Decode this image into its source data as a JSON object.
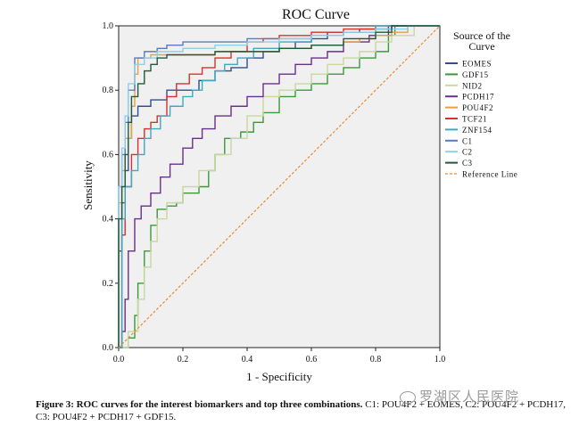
{
  "chart_data": {
    "type": "line",
    "title": "ROC Curve",
    "xlabel": "1 - Specificity",
    "ylabel": "Sensitivity",
    "xlim": [
      0,
      1
    ],
    "ylim": [
      0,
      1
    ],
    "xticks": [
      "0.0",
      "0.2",
      "0.4",
      "0.6",
      "0.8",
      "1.0"
    ],
    "yticks": [
      "0.0",
      "0.2",
      "0.4",
      "0.6",
      "0.8",
      "1.0"
    ],
    "legend_title": "Source of the Curve",
    "legend_position": "right",
    "series": [
      {
        "name": "EOMES",
        "color": "#2f4f8f",
        "points": [
          [
            0,
            0
          ],
          [
            0,
            0.3
          ],
          [
            0.01,
            0.45
          ],
          [
            0.02,
            0.55
          ],
          [
            0.03,
            0.65
          ],
          [
            0.04,
            0.72
          ],
          [
            0.06,
            0.75
          ],
          [
            0.1,
            0.77
          ],
          [
            0.15,
            0.8
          ],
          [
            0.2,
            0.8
          ],
          [
            0.25,
            0.83
          ],
          [
            0.3,
            0.86
          ],
          [
            0.35,
            0.87
          ],
          [
            0.4,
            0.9
          ],
          [
            0.45,
            0.92
          ],
          [
            0.5,
            0.93
          ],
          [
            0.55,
            0.95
          ],
          [
            0.6,
            0.96
          ],
          [
            0.65,
            0.98
          ],
          [
            0.75,
            0.99
          ],
          [
            0.85,
            1
          ],
          [
            1,
            1
          ]
        ]
      },
      {
        "name": "GDF15",
        "color": "#3a9a3a",
        "points": [
          [
            0,
            0
          ],
          [
            0.03,
            0.03
          ],
          [
            0.05,
            0.1
          ],
          [
            0.06,
            0.2
          ],
          [
            0.08,
            0.3
          ],
          [
            0.1,
            0.38
          ],
          [
            0.12,
            0.43
          ],
          [
            0.15,
            0.44
          ],
          [
            0.18,
            0.45
          ],
          [
            0.2,
            0.48
          ],
          [
            0.25,
            0.5
          ],
          [
            0.28,
            0.55
          ],
          [
            0.3,
            0.6
          ],
          [
            0.33,
            0.65
          ],
          [
            0.38,
            0.67
          ],
          [
            0.42,
            0.7
          ],
          [
            0.45,
            0.73
          ],
          [
            0.5,
            0.78
          ],
          [
            0.55,
            0.8
          ],
          [
            0.6,
            0.82
          ],
          [
            0.65,
            0.85
          ],
          [
            0.7,
            0.87
          ],
          [
            0.75,
            0.9
          ],
          [
            0.8,
            0.92
          ],
          [
            0.84,
            0.97
          ],
          [
            0.86,
            1
          ],
          [
            1,
            1
          ]
        ]
      },
      {
        "name": "NID2",
        "color": "#c8d8a0",
        "points": [
          [
            0,
            0
          ],
          [
            0.03,
            0.05
          ],
          [
            0.06,
            0.15
          ],
          [
            0.08,
            0.25
          ],
          [
            0.1,
            0.33
          ],
          [
            0.12,
            0.4
          ],
          [
            0.15,
            0.45
          ],
          [
            0.2,
            0.5
          ],
          [
            0.25,
            0.55
          ],
          [
            0.3,
            0.6
          ],
          [
            0.35,
            0.65
          ],
          [
            0.4,
            0.72
          ],
          [
            0.45,
            0.78
          ],
          [
            0.5,
            0.8
          ],
          [
            0.55,
            0.82
          ],
          [
            0.6,
            0.85
          ],
          [
            0.65,
            0.88
          ],
          [
            0.7,
            0.9
          ],
          [
            0.75,
            0.92
          ],
          [
            0.8,
            0.95
          ],
          [
            0.85,
            0.97
          ],
          [
            0.92,
            1
          ],
          [
            1,
            1
          ]
        ]
      },
      {
        "name": "PCDH17",
        "color": "#6a2f8a",
        "points": [
          [
            0,
            0
          ],
          [
            0.01,
            0.05
          ],
          [
            0.02,
            0.15
          ],
          [
            0.03,
            0.3
          ],
          [
            0.05,
            0.4
          ],
          [
            0.07,
            0.44
          ],
          [
            0.1,
            0.48
          ],
          [
            0.13,
            0.53
          ],
          [
            0.16,
            0.57
          ],
          [
            0.2,
            0.62
          ],
          [
            0.23,
            0.65
          ],
          [
            0.26,
            0.68
          ],
          [
            0.3,
            0.72
          ],
          [
            0.35,
            0.75
          ],
          [
            0.4,
            0.78
          ],
          [
            0.45,
            0.82
          ],
          [
            0.5,
            0.85
          ],
          [
            0.55,
            0.88
          ],
          [
            0.6,
            0.9
          ],
          [
            0.65,
            0.92
          ],
          [
            0.7,
            0.95
          ],
          [
            0.78,
            0.97
          ],
          [
            0.84,
            1
          ],
          [
            1,
            1
          ]
        ]
      },
      {
        "name": "POU4F2",
        "color": "#e8a040",
        "points": [
          [
            0,
            0
          ],
          [
            0,
            0.45
          ],
          [
            0.01,
            0.55
          ],
          [
            0.02,
            0.65
          ],
          [
            0.04,
            0.75
          ],
          [
            0.05,
            0.85
          ],
          [
            0.06,
            0.9
          ],
          [
            0.1,
            0.91
          ],
          [
            0.2,
            0.91
          ],
          [
            0.3,
            0.92
          ],
          [
            0.4,
            0.92
          ],
          [
            0.5,
            0.93
          ],
          [
            0.6,
            0.94
          ],
          [
            0.7,
            0.95
          ],
          [
            0.75,
            0.96
          ],
          [
            0.8,
            0.97
          ],
          [
            0.85,
            0.98
          ],
          [
            0.9,
            1
          ],
          [
            1,
            1
          ]
        ]
      },
      {
        "name": "TCF21",
        "color": "#d83030",
        "points": [
          [
            0,
            0
          ],
          [
            0.01,
            0.35
          ],
          [
            0.02,
            0.5
          ],
          [
            0.04,
            0.6
          ],
          [
            0.06,
            0.65
          ],
          [
            0.08,
            0.68
          ],
          [
            0.1,
            0.7
          ],
          [
            0.12,
            0.72
          ],
          [
            0.15,
            0.78
          ],
          [
            0.18,
            0.82
          ],
          [
            0.22,
            0.85
          ],
          [
            0.26,
            0.87
          ],
          [
            0.3,
            0.9
          ],
          [
            0.35,
            0.92
          ],
          [
            0.4,
            0.95
          ],
          [
            0.45,
            0.96
          ],
          [
            0.5,
            0.97
          ],
          [
            0.6,
            0.98
          ],
          [
            0.7,
            0.99
          ],
          [
            0.8,
            1
          ],
          [
            1,
            1
          ]
        ]
      },
      {
        "name": "ZNF154",
        "color": "#40a8c0",
        "points": [
          [
            0,
            0
          ],
          [
            0.01,
            0.4
          ],
          [
            0.02,
            0.5
          ],
          [
            0.04,
            0.55
          ],
          [
            0.06,
            0.6
          ],
          [
            0.08,
            0.65
          ],
          [
            0.1,
            0.68
          ],
          [
            0.13,
            0.72
          ],
          [
            0.16,
            0.75
          ],
          [
            0.2,
            0.78
          ],
          [
            0.23,
            0.8
          ],
          [
            0.26,
            0.83
          ],
          [
            0.3,
            0.86
          ],
          [
            0.33,
            0.88
          ],
          [
            0.37,
            0.9
          ],
          [
            0.42,
            0.93
          ],
          [
            0.5,
            0.95
          ],
          [
            0.6,
            0.97
          ],
          [
            0.7,
            0.98
          ],
          [
            0.8,
            1
          ],
          [
            1,
            1
          ]
        ]
      },
      {
        "name": "C1",
        "color": "#5a7abf",
        "points": [
          [
            0,
            0
          ],
          [
            0,
            0.5
          ],
          [
            0.01,
            0.6
          ],
          [
            0.02,
            0.7
          ],
          [
            0.03,
            0.8
          ],
          [
            0.05,
            0.9
          ],
          [
            0.08,
            0.92
          ],
          [
            0.12,
            0.93
          ],
          [
            0.15,
            0.94
          ],
          [
            0.2,
            0.95
          ],
          [
            0.3,
            0.95
          ],
          [
            0.4,
            0.96
          ],
          [
            0.5,
            0.96
          ],
          [
            0.6,
            0.97
          ],
          [
            0.7,
            0.98
          ],
          [
            0.8,
            0.99
          ],
          [
            0.85,
            1
          ],
          [
            1,
            1
          ]
        ]
      },
      {
        "name": "C2",
        "color": "#8ed0e8",
        "points": [
          [
            0,
            0
          ],
          [
            0,
            0.5
          ],
          [
            0.01,
            0.62
          ],
          [
            0.02,
            0.72
          ],
          [
            0.03,
            0.82
          ],
          [
            0.05,
            0.88
          ],
          [
            0.08,
            0.9
          ],
          [
            0.12,
            0.92
          ],
          [
            0.2,
            0.93
          ],
          [
            0.3,
            0.94
          ],
          [
            0.4,
            0.95
          ],
          [
            0.5,
            0.96
          ],
          [
            0.6,
            0.97
          ],
          [
            0.7,
            0.98
          ],
          [
            0.8,
            0.99
          ],
          [
            0.9,
            1
          ],
          [
            1,
            1
          ]
        ]
      },
      {
        "name": "C3",
        "color": "#1f5a3a",
        "points": [
          [
            0,
            0
          ],
          [
            0,
            0.4
          ],
          [
            0.01,
            0.5
          ],
          [
            0.02,
            0.6
          ],
          [
            0.03,
            0.7
          ],
          [
            0.04,
            0.78
          ],
          [
            0.06,
            0.82
          ],
          [
            0.08,
            0.86
          ],
          [
            0.1,
            0.88
          ],
          [
            0.12,
            0.9
          ],
          [
            0.15,
            0.91
          ],
          [
            0.2,
            0.91
          ],
          [
            0.3,
            0.92
          ],
          [
            0.4,
            0.92
          ],
          [
            0.5,
            0.93
          ],
          [
            0.6,
            0.94
          ],
          [
            0.7,
            0.96
          ],
          [
            0.8,
            0.98
          ],
          [
            0.85,
            1
          ],
          [
            1,
            1
          ]
        ]
      },
      {
        "name": "Reference Line",
        "color": "#f08a30",
        "dashed": true,
        "points": [
          [
            0,
            0
          ],
          [
            1,
            1
          ]
        ]
      }
    ]
  },
  "caption": {
    "bold": "Figure 3: ROC curves for the interest biomarkers and top three combinations.",
    "rest": " C1: POU4F2 + EOMES, C2: POU4F2 + PCDH17, C3: POU4F2 + PCDH17 + GDF15."
  },
  "watermark": "罗湖区人民医院"
}
